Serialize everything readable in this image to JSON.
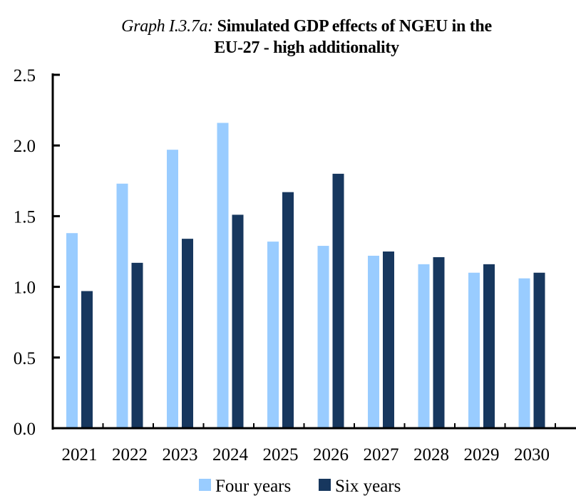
{
  "chart_data": {
    "type": "bar",
    "title_prefix": "Graph I.3.7a:",
    "title_line1": "Simulated GDP effects of NGEU in the",
    "title_line2": "EU-27 - high additionality",
    "xlabel": "",
    "ylabel": "",
    "ylim": [
      0,
      2.5
    ],
    "yticks": [
      0.0,
      0.5,
      1.0,
      1.5,
      2.0,
      2.5
    ],
    "ytick_labels": [
      "0.0",
      "0.5",
      "1.0",
      "1.5",
      "2.0",
      "2.5"
    ],
    "grid": false,
    "legend_position": "bottom",
    "categories": [
      "2021",
      "2022",
      "2023",
      "2024",
      "2025",
      "2026",
      "2027",
      "2028",
      "2029",
      "2030"
    ],
    "series": [
      {
        "name": "Four years",
        "color": "#99ccff",
        "values": [
          1.38,
          1.73,
          1.97,
          2.16,
          1.32,
          1.29,
          1.22,
          1.16,
          1.1,
          1.06
        ]
      },
      {
        "name": "Six years",
        "color": "#17375e",
        "values": [
          0.97,
          1.17,
          1.34,
          1.51,
          1.67,
          1.8,
          1.25,
          1.21,
          1.16,
          1.1
        ]
      }
    ]
  }
}
